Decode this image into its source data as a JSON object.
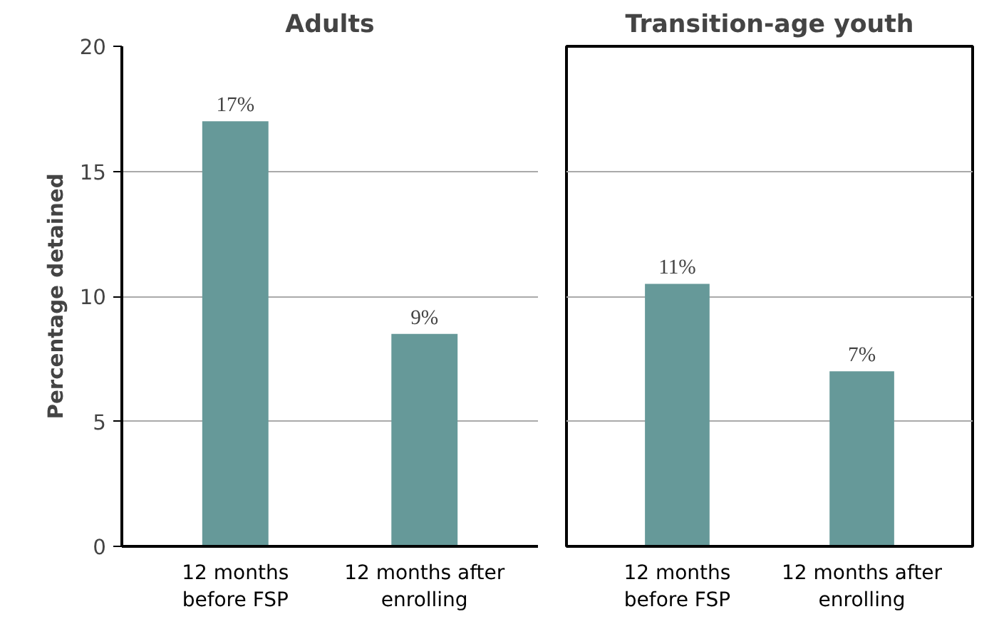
{
  "chart_data": [
    {
      "type": "bar",
      "title": "Adults",
      "ylabel": "Percentage detained",
      "categories": [
        "12 months\nbefore FSP",
        "12 months after\nenrolling"
      ],
      "values": [
        17,
        8.5
      ],
      "value_labels": [
        "17%",
        "9%"
      ],
      "color": "#669999",
      "ylim": [
        0,
        20
      ],
      "yticks": [
        0,
        5,
        10,
        15,
        20
      ],
      "grid": "y"
    },
    {
      "type": "bar",
      "title": "Transition-age youth",
      "categories": [
        "12 months\nbefore FSP",
        "12 months after\nenrolling"
      ],
      "values": [
        10.5,
        7
      ],
      "value_labels": [
        "11%",
        "7%"
      ],
      "color": "#669999",
      "ylim": [
        0,
        20
      ],
      "yticks": [
        0,
        5,
        10,
        15,
        20
      ],
      "grid": "y",
      "tick_labels": "x"
    }
  ]
}
